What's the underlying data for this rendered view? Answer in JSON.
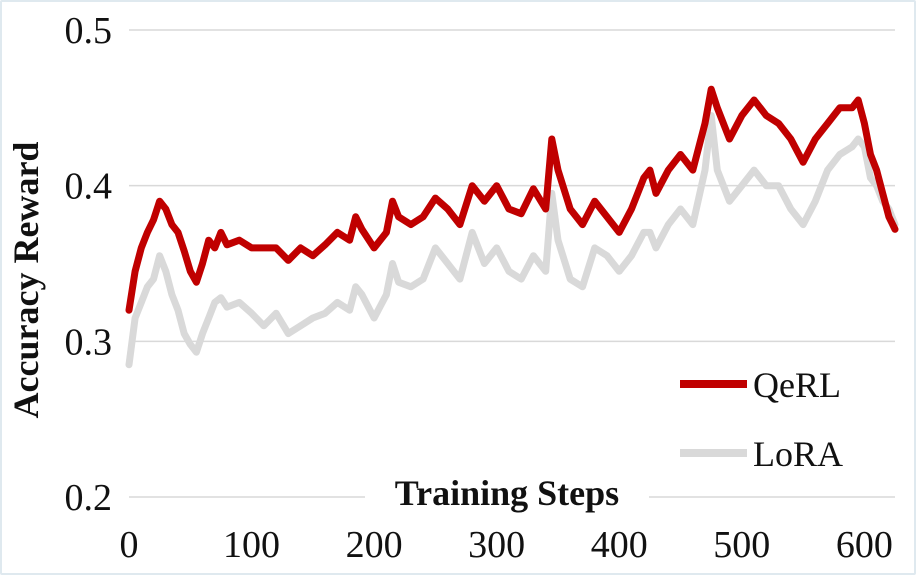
{
  "chart_data": {
    "type": "line",
    "title": "",
    "xlabel": "Training Steps",
    "ylabel": "Accuracy Reward",
    "xlim": [
      0,
      625
    ],
    "ylim": [
      0.2,
      0.5
    ],
    "xticks": [
      0,
      100,
      200,
      300,
      400,
      500,
      600
    ],
    "xtick_labels": [
      "0",
      "100",
      "200",
      "300",
      "400",
      "500",
      "600"
    ],
    "yticks": [
      0.2,
      0.3,
      0.4,
      0.5
    ],
    "ytick_labels": [
      "0.2",
      "0.3",
      "0.4",
      "0.5"
    ],
    "grid": "horizontal",
    "legend_position": "bottom-right",
    "series": [
      {
        "name": "QeRL",
        "color": "#c00000",
        "x": [
          0,
          5,
          10,
          15,
          20,
          25,
          30,
          35,
          40,
          45,
          50,
          55,
          60,
          65,
          70,
          75,
          80,
          90,
          100,
          110,
          120,
          130,
          140,
          150,
          160,
          170,
          180,
          185,
          190,
          200,
          210,
          215,
          220,
          230,
          240,
          250,
          260,
          270,
          280,
          290,
          300,
          310,
          320,
          330,
          340,
          345,
          350,
          360,
          370,
          380,
          390,
          400,
          410,
          420,
          425,
          430,
          440,
          450,
          460,
          470,
          475,
          480,
          490,
          500,
          510,
          520,
          530,
          540,
          550,
          560,
          570,
          580,
          590,
          595,
          600,
          605,
          610,
          615,
          620,
          625
        ],
        "values": [
          0.32,
          0.345,
          0.36,
          0.37,
          0.378,
          0.39,
          0.385,
          0.375,
          0.37,
          0.358,
          0.345,
          0.338,
          0.35,
          0.365,
          0.36,
          0.37,
          0.362,
          0.365,
          0.36,
          0.36,
          0.36,
          0.352,
          0.36,
          0.355,
          0.362,
          0.37,
          0.365,
          0.38,
          0.372,
          0.36,
          0.37,
          0.39,
          0.38,
          0.375,
          0.38,
          0.392,
          0.385,
          0.375,
          0.4,
          0.39,
          0.4,
          0.385,
          0.382,
          0.398,
          0.385,
          0.43,
          0.41,
          0.385,
          0.375,
          0.39,
          0.38,
          0.37,
          0.385,
          0.405,
          0.41,
          0.395,
          0.41,
          0.42,
          0.41,
          0.44,
          0.462,
          0.45,
          0.43,
          0.445,
          0.455,
          0.445,
          0.44,
          0.43,
          0.415,
          0.43,
          0.44,
          0.45,
          0.45,
          0.455,
          0.44,
          0.42,
          0.41,
          0.395,
          0.38,
          0.372
        ]
      },
      {
        "name": "LoRA",
        "color": "#d9d9d9",
        "x": [
          0,
          5,
          10,
          15,
          20,
          25,
          30,
          35,
          40,
          45,
          50,
          55,
          60,
          65,
          70,
          75,
          80,
          90,
          100,
          110,
          120,
          130,
          140,
          150,
          160,
          170,
          180,
          185,
          190,
          200,
          210,
          215,
          220,
          230,
          240,
          250,
          260,
          270,
          280,
          290,
          300,
          310,
          320,
          330,
          340,
          345,
          350,
          360,
          370,
          380,
          390,
          400,
          410,
          420,
          425,
          430,
          440,
          450,
          460,
          470,
          475,
          480,
          490,
          500,
          510,
          520,
          530,
          540,
          550,
          560,
          570,
          580,
          590,
          595,
          600,
          605,
          610,
          615,
          620,
          625
        ],
        "values": [
          0.285,
          0.315,
          0.325,
          0.335,
          0.34,
          0.355,
          0.345,
          0.33,
          0.32,
          0.305,
          0.298,
          0.293,
          0.305,
          0.315,
          0.325,
          0.328,
          0.322,
          0.325,
          0.318,
          0.31,
          0.318,
          0.305,
          0.31,
          0.315,
          0.318,
          0.325,
          0.32,
          0.335,
          0.33,
          0.315,
          0.33,
          0.35,
          0.338,
          0.335,
          0.34,
          0.36,
          0.35,
          0.34,
          0.37,
          0.35,
          0.36,
          0.345,
          0.34,
          0.355,
          0.345,
          0.395,
          0.365,
          0.34,
          0.335,
          0.36,
          0.355,
          0.345,
          0.355,
          0.37,
          0.37,
          0.36,
          0.375,
          0.385,
          0.375,
          0.41,
          0.445,
          0.41,
          0.39,
          0.4,
          0.41,
          0.4,
          0.4,
          0.385,
          0.375,
          0.39,
          0.41,
          0.42,
          0.425,
          0.43,
          0.425,
          0.405,
          0.4,
          0.39,
          0.385,
          0.375
        ]
      }
    ]
  }
}
